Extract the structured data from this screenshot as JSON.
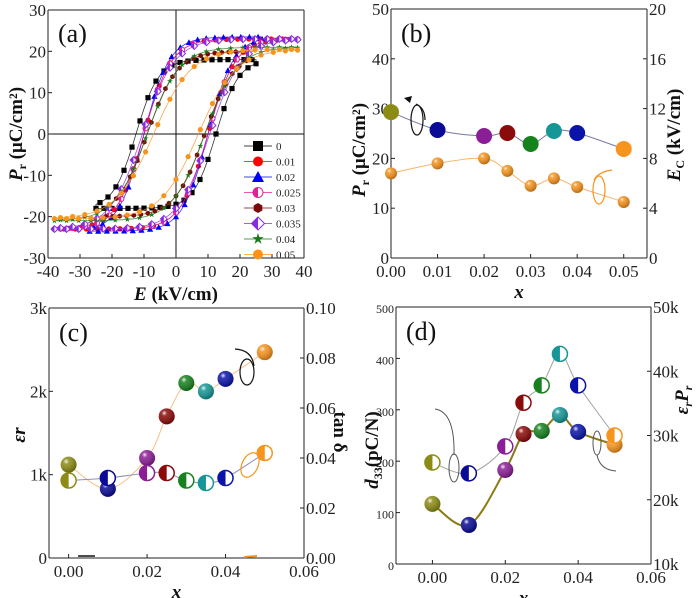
{
  "chart_data": [
    {
      "id": "a",
      "type": "line",
      "panel_label": "(a)",
      "title": "",
      "xlabel": "E (kV/cm)",
      "ylabel": "P (μC/cm²)",
      "xlim": [
        -40,
        40
      ],
      "ylim": [
        -30,
        30
      ],
      "xticks": [
        "-40",
        "-30",
        "-20",
        "-10",
        "0",
        "10",
        "20",
        "30",
        "40"
      ],
      "yticks": [
        "-30",
        "-20",
        "-10",
        "0",
        "10",
        "20",
        "30"
      ],
      "grid": false,
      "legend_position": "bottom-right",
      "description": "P-E hysteresis loops",
      "series": [
        {
          "name": "0",
          "marker": "square",
          "color": "#000000",
          "Emax": 25,
          "Pmax": 18,
          "Ec": 12.5,
          "Pr": 17
        },
        {
          "name": "0.01",
          "marker": "circle",
          "color": "#ff0000",
          "Emax": 35,
          "Pmax": 23,
          "Ec": 10,
          "Pr": 19
        },
        {
          "name": "0.02",
          "marker": "triangle",
          "color": "#0000ff",
          "Emax": 27,
          "Pmax": 23.5,
          "Ec": 10,
          "Pr": 20
        },
        {
          "name": "0.025",
          "marker": "half-circle",
          "color": "#e0209a",
          "Emax": 38,
          "Pmax": 23,
          "Ec": 10,
          "Pr": 19
        },
        {
          "name": "0.03",
          "marker": "hexagon",
          "color": "#7a0a0a",
          "Emax": 22,
          "Pmax": 20,
          "Ec": 9,
          "Pr": 15
        },
        {
          "name": "0.035",
          "marker": "half-diamond",
          "color": "#8a2be2",
          "Emax": 38,
          "Pmax": 23,
          "Ec": 10.5,
          "Pr": 18
        },
        {
          "name": "0.04",
          "marker": "star",
          "color": "#1a7a1a",
          "Emax": 38,
          "Pmax": 21,
          "Ec": 9,
          "Pr": 15
        },
        {
          "name": "0.05",
          "marker": "ball",
          "color": "#f7941d",
          "Emax": 38,
          "Pmax": 20.5,
          "Ec": 7,
          "Pr": 11
        }
      ]
    },
    {
      "id": "b",
      "type": "scatter",
      "panel_label": "(b)",
      "xlabel": "x",
      "ylabel": "Pr (μC/cm²)",
      "y2label": "Ec (kV/cm)",
      "xlim": [
        0,
        0.055
      ],
      "ylim": [
        0,
        50
      ],
      "y2lim": [
        0,
        20
      ],
      "xticks": [
        "0.00",
        "0.01",
        "0.02",
        "0.03",
        "0.04",
        "0.05"
      ],
      "yticks": [
        "0",
        "10",
        "20",
        "30",
        "40",
        "50"
      ],
      "y2ticks": [
        "0",
        "4",
        "8",
        "12",
        "16",
        "20"
      ],
      "grid": false,
      "x": [
        0,
        0.01,
        0.02,
        0.025,
        0.03,
        0.035,
        0.04,
        0.05
      ],
      "series": [
        {
          "name": "Pr",
          "axis": "left",
          "values": [
            29.3,
            25.7,
            24.5,
            25.1,
            22.9,
            25.5,
            25.1,
            21.9
          ],
          "colors": [
            "#8c8c14",
            "#0a0a96",
            "#8b1e96",
            "#8b0a0a",
            "#16821e",
            "#169696",
            "#0a14aa",
            "#f7941d"
          ],
          "line_color": "#7878a0"
        },
        {
          "name": "Ec",
          "axis": "right",
          "values": [
            6.8,
            7.6,
            8.0,
            7.0,
            5.8,
            6.4,
            5.7,
            4.5
          ],
          "colors": [
            "#f7941d"
          ],
          "line_color": "#f7b46a"
        }
      ]
    },
    {
      "id": "c",
      "type": "scatter",
      "panel_label": "(c)",
      "xlabel": "x",
      "ylabel": "εr",
      "y2label": "tan δ",
      "xlim": [
        -0.005,
        0.06
      ],
      "ylim": [
        0,
        3000
      ],
      "y2lim": [
        0,
        0.1
      ],
      "xticks": [
        "0.00",
        "0.02",
        "0.04",
        "0.06"
      ],
      "yticks": [
        "0",
        "1k",
        "2k",
        "3k"
      ],
      "y2ticks": [
        "0.00",
        "0.02",
        "0.04",
        "0.06",
        "0.08",
        "0.10"
      ],
      "grid": false,
      "x": [
        0,
        0.01,
        0.02,
        0.025,
        0.03,
        0.035,
        0.04,
        0.05
      ],
      "series": [
        {
          "name": "εr",
          "axis": "left",
          "marker": "ball",
          "values": [
            1120,
            830,
            1200,
            1700,
            2100,
            2000,
            2150,
            2470
          ],
          "colors": [
            "#8c8c14",
            "#0a0a96",
            "#8b1e96",
            "#8b0a0a",
            "#16821e",
            "#169696",
            "#0a14aa",
            "#f7941d"
          ],
          "line_color": "#f7c08a"
        },
        {
          "name": "tan δ",
          "axis": "right",
          "marker": "half-circle",
          "values": [
            0.031,
            0.032,
            0.034,
            0.034,
            0.031,
            0.03,
            0.032,
            0.042
          ],
          "colors": [
            "#8c8c14",
            "#0a0a96",
            "#8b1e96",
            "#8b0a0a",
            "#16821e",
            "#169696",
            "#0a14aa",
            "#f7941d"
          ],
          "line_color": "#9090b0"
        }
      ]
    },
    {
      "id": "d",
      "type": "scatter",
      "panel_label": "(d)",
      "xlabel": "x",
      "ylabel": "d33 (pC/N)",
      "y2label": "εr Pr",
      "xlim": [
        -0.01,
        0.06
      ],
      "ylim": [
        0,
        500
      ],
      "y2lim": [
        10000,
        50000
      ],
      "xticks": [
        "0.00",
        "0.02",
        "0.04",
        "0.06"
      ],
      "yticks": [
        "0",
        "100",
        "200",
        "300",
        "400",
        "500"
      ],
      "y2ticks": [
        "10k",
        "20k",
        "30k",
        "40k",
        "50k"
      ],
      "grid": false,
      "x": [
        0,
        0.01,
        0.02,
        0.025,
        0.03,
        0.035,
        0.04,
        0.05
      ],
      "series": [
        {
          "name": "d33",
          "axis": "left",
          "marker": "ball",
          "values": [
            117,
            76,
            183,
            253,
            259,
            290,
            257,
            232
          ],
          "colors": [
            "#8c8c14",
            "#0a0a96",
            "#8b1e96",
            "#8b0a0a",
            "#16821e",
            "#169696",
            "#0a14aa",
            "#f7941d"
          ],
          "line_color": "#8c7a14"
        },
        {
          "name": "εr Pr",
          "axis": "right",
          "marker": "half-circle",
          "values": [
            25800,
            24100,
            28300,
            35100,
            37800,
            42700,
            37800,
            30000
          ],
          "colors": [
            "#8c8c14",
            "#0a0a96",
            "#8b1e96",
            "#8b0a0a",
            "#16821e",
            "#169696",
            "#0a14aa",
            "#f7941d"
          ],
          "line_color": "#a0a0a0"
        }
      ]
    }
  ]
}
